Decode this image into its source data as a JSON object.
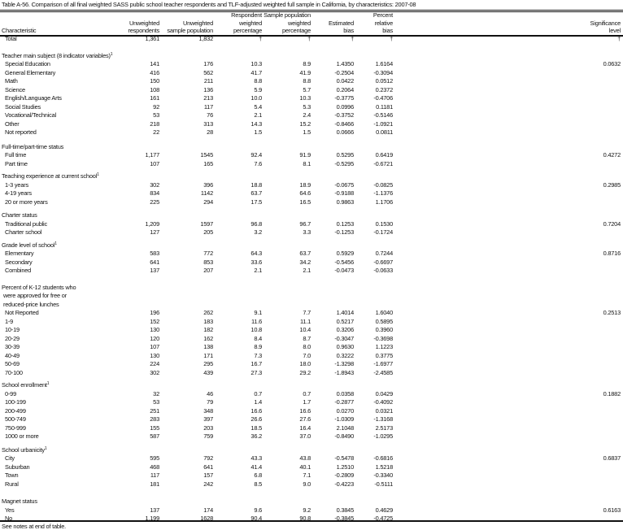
{
  "title": "Table A-56. Comparison of all final weighted SASS public school teacher respondents and TLF-adjusted weighted full sample in California, by characteristics: 2007-08",
  "columns": [
    [
      "",
      "",
      "Characteristic"
    ],
    [
      "",
      "Unweighted",
      "respondents"
    ],
    [
      "",
      "Unweighted",
      "sample population"
    ],
    [
      "Respondent",
      "weighted",
      "percentage"
    ],
    [
      "Sample population",
      "weighted",
      "percentage"
    ],
    [
      "",
      "Estimated",
      "bias"
    ],
    [
      "Percent",
      "relative",
      "bias"
    ],
    [
      "",
      "Significance",
      "level"
    ]
  ],
  "total": [
    "Total",
    "1,361",
    "1,832",
    "†",
    "†",
    "†",
    "†",
    "†"
  ],
  "sections": [
    {
      "heading": [
        "Teacher main subject (8 indicator variables)"
      ],
      "sup": "1",
      "rows": [
        [
          "Special Education",
          "141",
          "176",
          "10.3",
          "8.9",
          "1.4350",
          "1.6164",
          "0.0632"
        ],
        [
          "General Elementary",
          "416",
          "562",
          "41.7",
          "41.9",
          "-0.2504",
          "-0.3094",
          ""
        ],
        [
          "Math",
          "150",
          "211",
          "8.8",
          "8.8",
          "0.0422",
          "0.0512",
          ""
        ],
        [
          "Science",
          "108",
          "136",
          "5.9",
          "5.7",
          "0.2064",
          "0.2372",
          ""
        ],
        [
          "English/Language Arts",
          "161",
          "213",
          "10.0",
          "10.3",
          "-0.3775",
          "-0.4706",
          ""
        ],
        [
          "Social Studies",
          "92",
          "117",
          "5.4",
          "5.3",
          "0.0996",
          "0.1181",
          ""
        ],
        [
          "Vocational/Technical",
          "53",
          "76",
          "2.1",
          "2.4",
          "-0.3752",
          "-0.5146",
          ""
        ],
        [
          "Other",
          "218",
          "313",
          "14.3",
          "15.2",
          "-0.8466",
          "-1.0921",
          ""
        ],
        [
          "Not reported",
          "22",
          "28",
          "1.5",
          "1.5",
          "0.0666",
          "0.0811",
          ""
        ]
      ]
    },
    {
      "heading": [
        "Full-time/part-time status"
      ],
      "sup": "",
      "rows": [
        [
          "Full time",
          "1,177",
          "1545",
          "92.4",
          "91.9",
          "0.5295",
          "0.6419",
          "0.4272"
        ],
        [
          "Part time",
          "107",
          "165",
          "7.6",
          "8.1",
          "-0.5295",
          "-0.6721",
          ""
        ]
      ]
    },
    {
      "heading": [
        "Teaching experience at current school"
      ],
      "sup": "1",
      "rows": [
        [
          "1-3 years",
          "302",
          "396",
          "18.8",
          "18.9",
          "-0.0675",
          "-0.0825",
          "0.2985"
        ],
        [
          "4-19 years",
          "834",
          "1142",
          "63.7",
          "64.6",
          "-0.9188",
          "-1.1376",
          ""
        ],
        [
          "20 or more years",
          "225",
          "294",
          "17.5",
          "16.5",
          "0.9863",
          "1.1706",
          ""
        ]
      ]
    },
    {
      "heading": [
        "Charter status"
      ],
      "sup": "",
      "rows": [
        [
          "Traditional public",
          "1,209",
          "1597",
          "96.8",
          "96.7",
          "0.1253",
          "0.1530",
          "0.7204"
        ],
        [
          "Charter school",
          "127",
          "205",
          "3.2",
          "3.3",
          "-0.1253",
          "-0.1724",
          ""
        ]
      ]
    },
    {
      "heading": [
        "Grade level of school"
      ],
      "sup": "1",
      "rows": [
        [
          "Elementary",
          "583",
          "772",
          "64.3",
          "63.7",
          "0.5929",
          "0.7244",
          "0.8716"
        ],
        [
          "Secondary",
          "641",
          "853",
          "33.6",
          "34.2",
          "-0.5456",
          "-0.6697",
          ""
        ],
        [
          "Combined",
          "137",
          "207",
          "2.1",
          "2.1",
          "-0.0473",
          "-0.0633",
          ""
        ]
      ]
    },
    {
      "heading": [
        "Percent of K-12 students who",
        "were approved for free or",
        "reduced-price lunches"
      ],
      "sup": "",
      "rows": [
        [
          "Not Reported",
          "196",
          "262",
          "9.1",
          "7.7",
          "1.4014",
          "1.6040",
          "0.2513"
        ],
        [
          "1-9",
          "152",
          "183",
          "11.6",
          "11.1",
          "0.5217",
          "0.5895",
          ""
        ],
        [
          "10-19",
          "130",
          "182",
          "10.8",
          "10.4",
          "0.3206",
          "0.3960",
          ""
        ],
        [
          "20-29",
          "120",
          "162",
          "8.4",
          "8.7",
          "-0.3047",
          "-0.3698",
          ""
        ],
        [
          "30-39",
          "107",
          "138",
          "8.9",
          "8.0",
          "0.9630",
          "1.1223",
          ""
        ],
        [
          "40-49",
          "130",
          "171",
          "7.3",
          "7.0",
          "0.3222",
          "0.3775",
          ""
        ],
        [
          "50-69",
          "224",
          "295",
          "16.7",
          "18.0",
          "-1.3298",
          "-1.6977",
          ""
        ],
        [
          "70-100",
          "302",
          "439",
          "27.3",
          "29.2",
          "-1.8943",
          "-2.4585",
          ""
        ]
      ]
    },
    {
      "heading": [
        "School enrollment"
      ],
      "sup": "1",
      "rows": [
        [
          "0-99",
          "32",
          "46",
          "0.7",
          "0.7",
          "0.0358",
          "0.0429",
          "0.1882"
        ],
        [
          "100-199",
          "53",
          "79",
          "1.4",
          "1.7",
          "-0.2877",
          "-0.4092",
          ""
        ],
        [
          "200-499",
          "251",
          "348",
          "16.6",
          "16.6",
          "0.0270",
          "0.0321",
          ""
        ],
        [
          "500-749",
          "283",
          "397",
          "26.6",
          "27.6",
          "-1.0309",
          "-1.3168",
          ""
        ],
        [
          "750-999",
          "155",
          "203",
          "18.5",
          "16.4",
          "2.1048",
          "2.5173",
          ""
        ],
        [
          "1000 or more",
          "587",
          "759",
          "36.2",
          "37.0",
          "-0.8490",
          "-1.0295",
          ""
        ]
      ]
    },
    {
      "heading": [
        "School urbanicity"
      ],
      "sup": "1",
      "rows": [
        [
          "City",
          "595",
          "792",
          "43.3",
          "43.8",
          "-0.5478",
          "-0.6816",
          "0.6837"
        ],
        [
          "Suburban",
          "468",
          "641",
          "41.4",
          "40.1",
          "1.2510",
          "1.5218",
          ""
        ],
        [
          "Town",
          "117",
          "157",
          "6.8",
          "7.1",
          "-0.2809",
          "-0.3340",
          ""
        ],
        [
          "Rural",
          "181",
          "242",
          "8.5",
          "9.0",
          "-0.4223",
          "-0.5111",
          ""
        ]
      ]
    },
    {
      "heading": [
        "Magnet status"
      ],
      "sup": "",
      "rows": [
        [
          "Yes",
          "137",
          "174",
          "9.6",
          "9.2",
          "0.3845",
          "0.4629",
          "0.6163"
        ],
        [
          "No",
          "1,199",
          "1628",
          "90.4",
          "90.8",
          "-0.3845",
          "-0.4725",
          ""
        ]
      ]
    }
  ],
  "note": "See notes at end of table."
}
